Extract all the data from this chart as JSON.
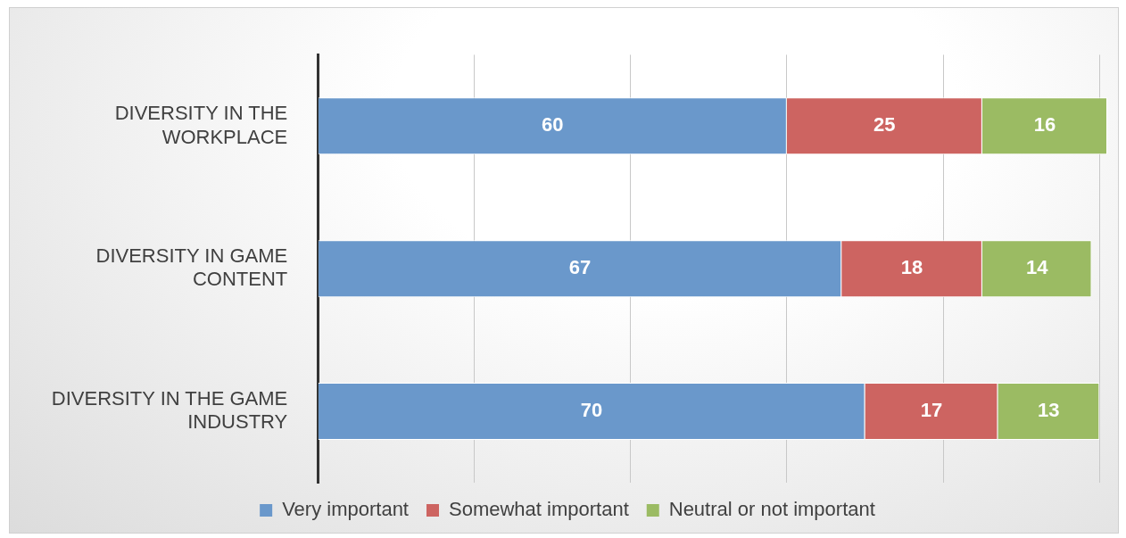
{
  "chart_data": {
    "type": "bar",
    "orientation": "horizontal",
    "stacked": true,
    "categories": [
      "DIVERSITY IN THE WORKPLACE",
      "DIVERSITY IN GAME CONTENT",
      "DIVERSITY IN THE GAME INDUSTRY"
    ],
    "series": [
      {
        "name": "Very important",
        "color": "#6a98cb",
        "values": [
          60,
          67,
          70
        ]
      },
      {
        "name": "Somewhat important",
        "color": "#cd6461",
        "values": [
          25,
          18,
          17
        ]
      },
      {
        "name": "Neutral or not important",
        "color": "#9bbb63",
        "values": [
          16,
          14,
          13
        ]
      }
    ],
    "xlim": [
      0,
      101
    ],
    "xticks": [
      {
        "value": 0,
        "label": null
      },
      {
        "value": 20,
        "label": null
      },
      {
        "value": 40,
        "label": null
      },
      {
        "value": 60,
        "label": null
      },
      {
        "value": 80,
        "label": null
      },
      {
        "value": 100,
        "label": null
      }
    ],
    "tick_labels": "y",
    "grid": "x",
    "legend": "bottom",
    "data_labels": true
  }
}
